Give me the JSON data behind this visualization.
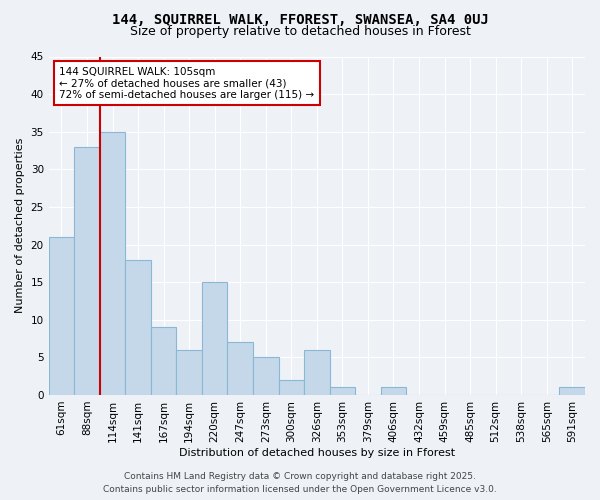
{
  "title1": "144, SQUIRREL WALK, FFOREST, SWANSEA, SA4 0UJ",
  "title2": "Size of property relative to detached houses in Fforest",
  "xlabel": "Distribution of detached houses by size in Fforest",
  "ylabel": "Number of detached properties",
  "categories": [
    "61sqm",
    "88sqm",
    "114sqm",
    "141sqm",
    "167sqm",
    "194sqm",
    "220sqm",
    "247sqm",
    "273sqm",
    "300sqm",
    "326sqm",
    "353sqm",
    "379sqm",
    "406sqm",
    "432sqm",
    "459sqm",
    "485sqm",
    "512sqm",
    "538sqm",
    "565sqm",
    "591sqm"
  ],
  "values": [
    21,
    33,
    35,
    18,
    9,
    6,
    15,
    7,
    5,
    2,
    6,
    1,
    0,
    1,
    0,
    0,
    0,
    0,
    0,
    0,
    1
  ],
  "bar_color": "#c5d8ea",
  "bar_edge_color": "#8ab8d4",
  "vline_color": "#cc0000",
  "annotation_line1": "144 SQUIRREL WALK: 105sqm",
  "annotation_line2": "← 27% of detached houses are smaller (43)",
  "annotation_line3": "72% of semi-detached houses are larger (115) →",
  "annotation_box_color": "#ffffff",
  "annotation_box_edge_color": "#cc0000",
  "ylim": [
    0,
    45
  ],
  "yticks": [
    0,
    5,
    10,
    15,
    20,
    25,
    30,
    35,
    40,
    45
  ],
  "footer1": "Contains HM Land Registry data © Crown copyright and database right 2025.",
  "footer2": "Contains public sector information licensed under the Open Government Licence v3.0.",
  "background_color": "#eef2f7",
  "grid_color": "#ffffff",
  "title_fontsize": 10,
  "subtitle_fontsize": 9,
  "axis_label_fontsize": 8,
  "tick_fontsize": 7.5,
  "annotation_fontsize": 7.5,
  "footer_fontsize": 6.5
}
